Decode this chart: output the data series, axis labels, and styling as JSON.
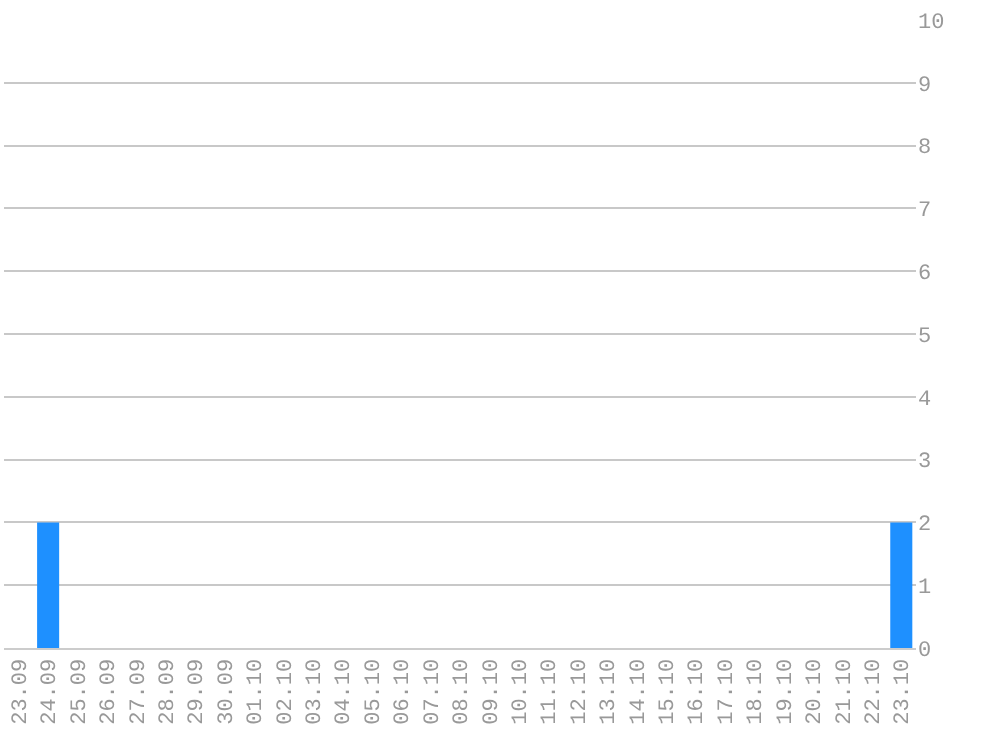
{
  "chart_data": {
    "type": "bar",
    "categories": [
      "23.09",
      "24.09",
      "25.09",
      "26.09",
      "27.09",
      "28.09",
      "29.09",
      "30.09",
      "01.10",
      "02.10",
      "03.10",
      "04.10",
      "05.10",
      "06.10",
      "07.10",
      "08.10",
      "09.10",
      "10.10",
      "11.10",
      "12.10",
      "13.10",
      "14.10",
      "15.10",
      "16.10",
      "17.10",
      "18.10",
      "19.10",
      "20.10",
      "21.10",
      "22.10",
      "23.10"
    ],
    "values": [
      0,
      2,
      0,
      0,
      0,
      0,
      0,
      0,
      0,
      0,
      0,
      0,
      0,
      0,
      0,
      0,
      0,
      0,
      0,
      0,
      0,
      0,
      0,
      0,
      0,
      0,
      0,
      0,
      0,
      0,
      2
    ],
    "color": "#1e90ff",
    "ylim": [
      0,
      10
    ],
    "yticks": [
      0,
      1,
      2,
      3,
      4,
      5,
      6,
      7,
      8,
      9,
      10
    ],
    "grid": "y"
  }
}
